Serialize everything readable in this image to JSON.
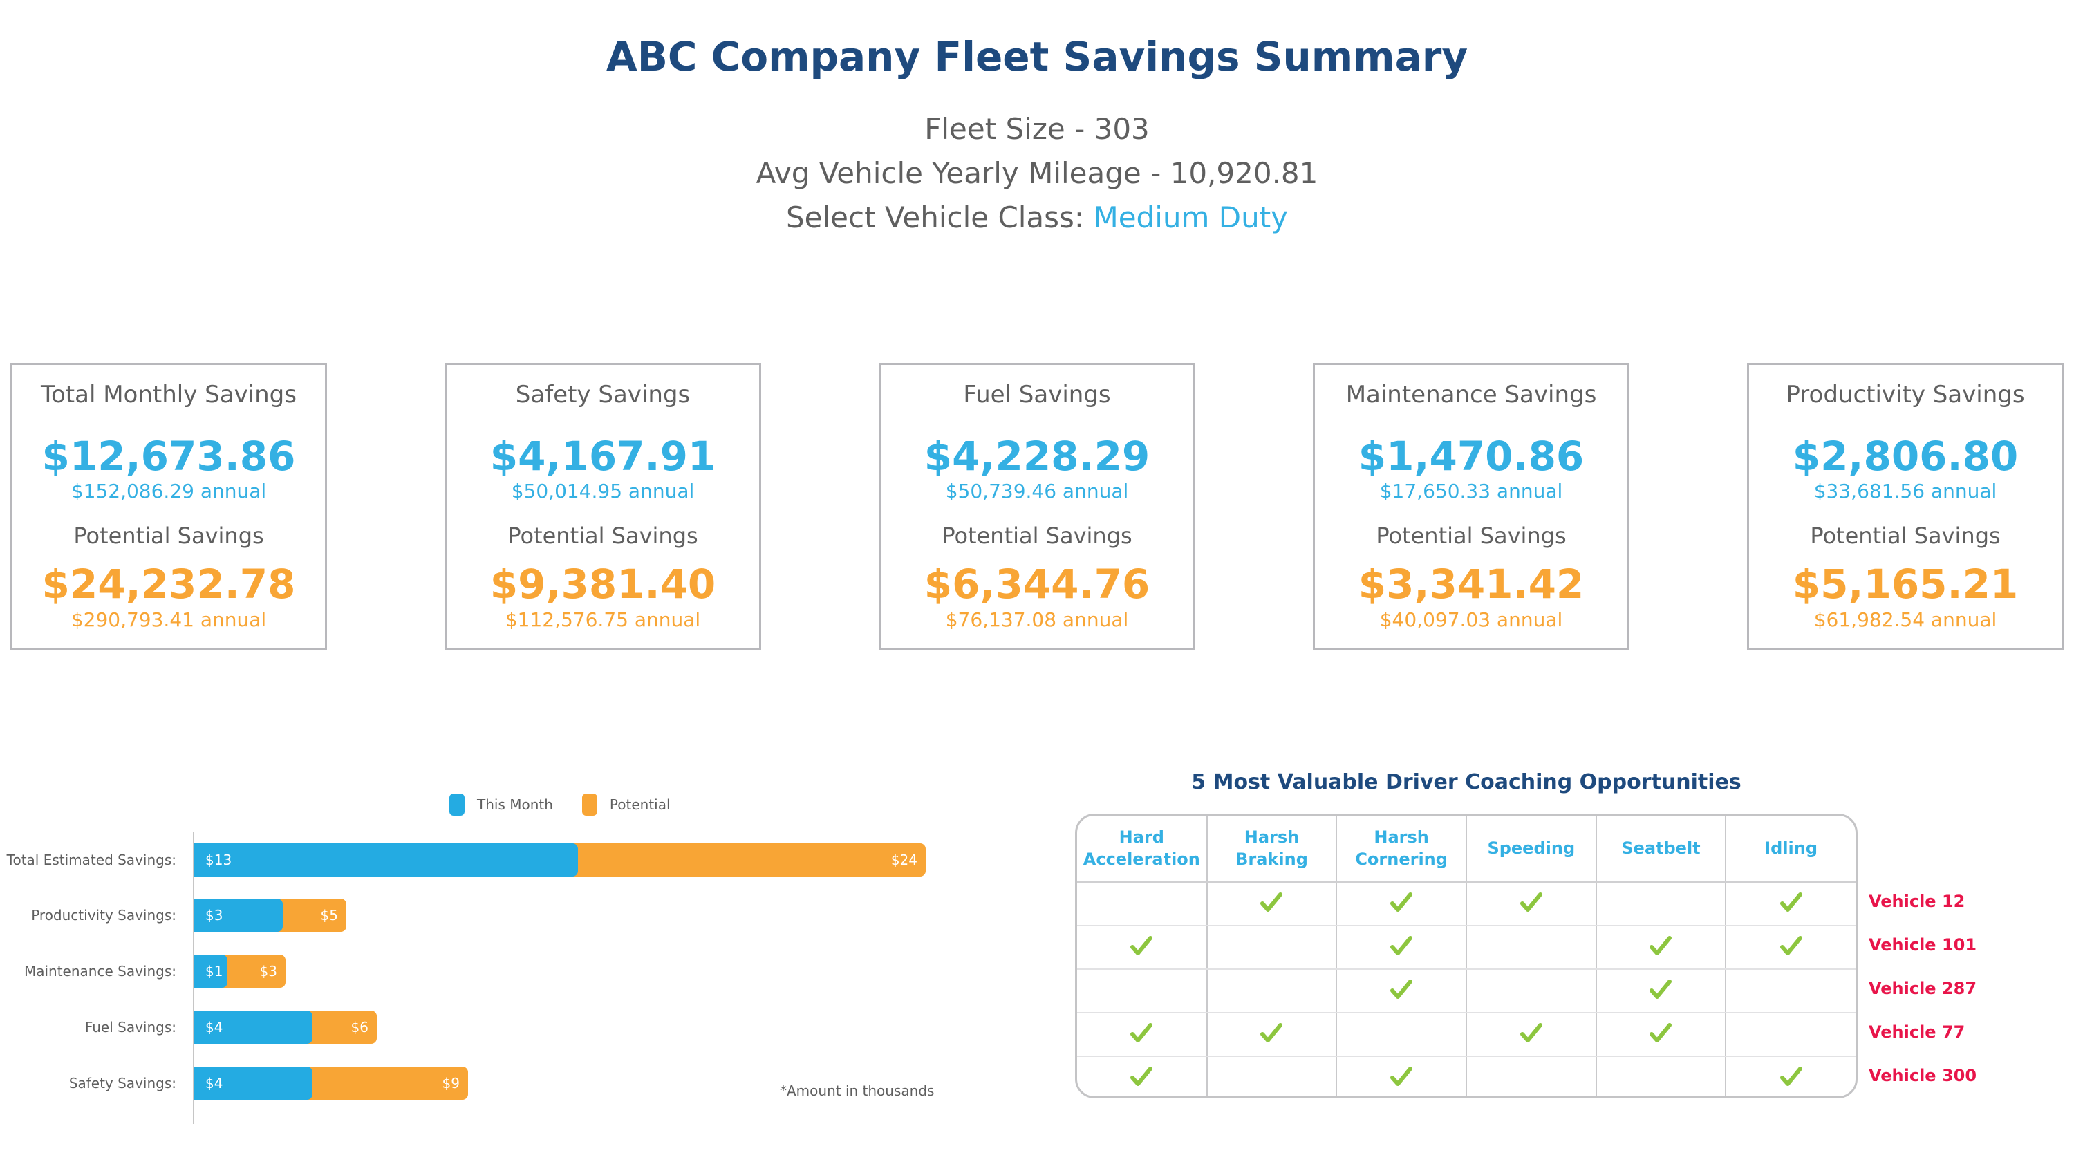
{
  "header": {
    "title": "ABC Company Fleet Savings Summary",
    "fleet_size_label": "Fleet Size - 303",
    "avg_mileage_label": "Avg Vehicle Yearly Mileage - 10,920.81",
    "vehicle_class_label": "Select Vehicle Class:",
    "vehicle_class_value": "Medium Duty"
  },
  "cards": [
    {
      "title": "Total Monthly Savings",
      "monthly": "$12,673.86",
      "monthly_annual": "$152,086.29 annual",
      "potential_label": "Potential Savings",
      "potential": "$24,232.78",
      "potential_annual": "$290,793.41 annual"
    },
    {
      "title": "Safety Savings",
      "monthly": "$4,167.91",
      "monthly_annual": "$50,014.95 annual",
      "potential_label": "Potential Savings",
      "potential": "$9,381.40",
      "potential_annual": "$112,576.75 annual"
    },
    {
      "title": "Fuel Savings",
      "monthly": "$4,228.29",
      "monthly_annual": "$50,739.46 annual",
      "potential_label": "Potential Savings",
      "potential": "$6,344.76",
      "potential_annual": "$76,137.08 annual"
    },
    {
      "title": "Maintenance Savings",
      "monthly": "$1,470.86",
      "monthly_annual": "$17,650.33 annual",
      "potential_label": "Potential Savings",
      "potential": "$3,341.42",
      "potential_annual": "$40,097.03 annual"
    },
    {
      "title": "Productivity Savings",
      "monthly": "$2,806.80",
      "monthly_annual": "$33,681.56 annual",
      "potential_label": "Potential Savings",
      "potential": "$5,165.21",
      "potential_annual": "$61,982.54 annual"
    }
  ],
  "colors": {
    "title": "#1e4a7e",
    "this_month": "#24abe2",
    "potential": "#f8a535",
    "check": "#8dc63f",
    "vehicle": "#e8154a"
  },
  "chart_data": {
    "type": "bar",
    "orientation": "horizontal",
    "title": "",
    "xlabel": "",
    "ylabel": "",
    "categories": [
      "Total Estimated Savings:",
      "Productivity Savings:",
      "Maintenance Savings:",
      "Fuel Savings:",
      "Safety Savings:"
    ],
    "series": [
      {
        "name": "This Month",
        "values": [
          13,
          3,
          1,
          4,
          4
        ],
        "labels": [
          "$13",
          "$3",
          "$1",
          "$4",
          "$4"
        ]
      },
      {
        "name": "Potential",
        "values": [
          24,
          5,
          3,
          6,
          9
        ],
        "labels": [
          "$24",
          "$5",
          "$3",
          "$6",
          "$9"
        ]
      }
    ],
    "overlay": true,
    "legend": [
      "This Month",
      "Potential"
    ],
    "legend_position": "top",
    "grid": false,
    "xlim": [
      0,
      24.5
    ],
    "note": "*Amount in thousands"
  },
  "coaching": {
    "title": "5 Most Valuable Driver Coaching Opportunities",
    "columns": [
      "Hard Acceleration",
      "Harsh Braking",
      "Harsh Cornering",
      "Speeding",
      "Seatbelt",
      "Idling"
    ],
    "column_lines": [
      [
        "Hard",
        "Acceleration"
      ],
      [
        "Harsh",
        "Braking"
      ],
      [
        "Harsh",
        "Cornering"
      ],
      [
        "Speeding"
      ],
      [
        "Seatbelt"
      ],
      [
        "Idling"
      ]
    ],
    "rows": [
      {
        "vehicle": "Vehicle 12",
        "checks": [
          false,
          true,
          true,
          true,
          false,
          true
        ]
      },
      {
        "vehicle": "Vehicle 101",
        "checks": [
          true,
          false,
          true,
          false,
          true,
          true
        ]
      },
      {
        "vehicle": "Vehicle 287",
        "checks": [
          false,
          false,
          true,
          false,
          true,
          false
        ]
      },
      {
        "vehicle": "Vehicle 77",
        "checks": [
          true,
          true,
          false,
          true,
          true,
          false
        ]
      },
      {
        "vehicle": "Vehicle 300",
        "checks": [
          true,
          false,
          true,
          false,
          false,
          true
        ]
      }
    ]
  }
}
